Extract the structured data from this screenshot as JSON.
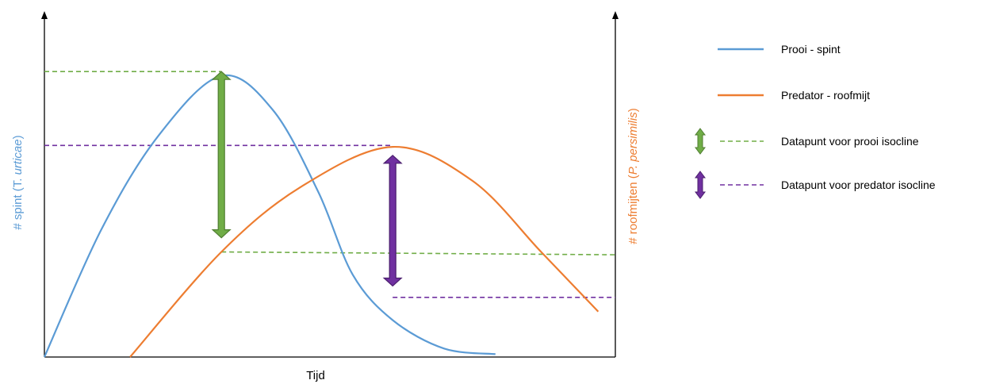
{
  "chart_data": {
    "type": "line",
    "title": "",
    "xlabel": "Tijd",
    "ylabel_left": {
      "prefix": "# spint (T. ",
      "italic": "urticae",
      "suffix": ")"
    },
    "ylabel_right": {
      "prefix": "# roofmijten (",
      "italic": "P. persimilis",
      "suffix": ")"
    },
    "grid": false,
    "legend_position": "right",
    "x_range": [
      0,
      100
    ],
    "y_range": [
      0,
      100
    ],
    "series": [
      {
        "name": "Prooi - spint",
        "color": "#5b9bd5",
        "points": [
          [
            0,
            0
          ],
          [
            10,
            45
          ],
          [
            20,
            78
          ],
          [
            31,
            99
          ],
          [
            40,
            87
          ],
          [
            48,
            58
          ],
          [
            54,
            29
          ],
          [
            61,
            13
          ],
          [
            70,
            3
          ],
          [
            79,
            1
          ]
        ]
      },
      {
        "name": "Predator - roofmijt",
        "color": "#ed7d31",
        "points": [
          [
            15,
            0
          ],
          [
            31,
            37
          ],
          [
            45,
            60
          ],
          [
            61,
            74
          ],
          [
            75,
            62
          ],
          [
            87,
            37
          ],
          [
            97,
            16
          ]
        ]
      }
    ],
    "guides": [
      {
        "legend": "Datapunt voor prooi isocline",
        "color": "#70ad47",
        "line": [
          [
            0,
            100.5
          ],
          [
            31,
            100.5
          ]
        ],
        "arrow": [
          31,
          100.5,
          31,
          42
        ]
      },
      {
        "legend": "Datapunt voor prooi isocline",
        "color": "#70ad47",
        "line": [
          [
            31,
            37
          ],
          [
            100,
            36
          ]
        ]
      },
      {
        "legend": "Datapunt voor predator isocline",
        "color": "#7030a0",
        "line": [
          [
            0,
            74.5
          ],
          [
            61,
            74.5
          ]
        ],
        "arrow": [
          61,
          71,
          61,
          25
        ]
      },
      {
        "legend": "Datapunt voor predator isocline",
        "color": "#7030a0",
        "line": [
          [
            61,
            21
          ],
          [
            100,
            21
          ]
        ]
      }
    ],
    "legend": [
      {
        "label": "Prooi - spint",
        "kind": "line",
        "color": "#5b9bd5"
      },
      {
        "label": "Predator - roofmijt",
        "kind": "line",
        "color": "#ed7d31"
      },
      {
        "label": "Datapunt voor prooi isocline",
        "kind": "arrow-dash",
        "color": "#70ad47"
      },
      {
        "label": "Datapunt voor predator isocline",
        "kind": "arrow-dash",
        "color": "#7030a0"
      }
    ],
    "colors": {
      "axis": "#000000",
      "left_label": "#5b9bd5",
      "right_label": "#ed7d31",
      "arrow_green_fill": "#70ad47",
      "arrow_green_stroke": "#507e32",
      "arrow_purple_fill": "#7030a0",
      "arrow_purple_stroke": "#4b1f6e"
    }
  }
}
